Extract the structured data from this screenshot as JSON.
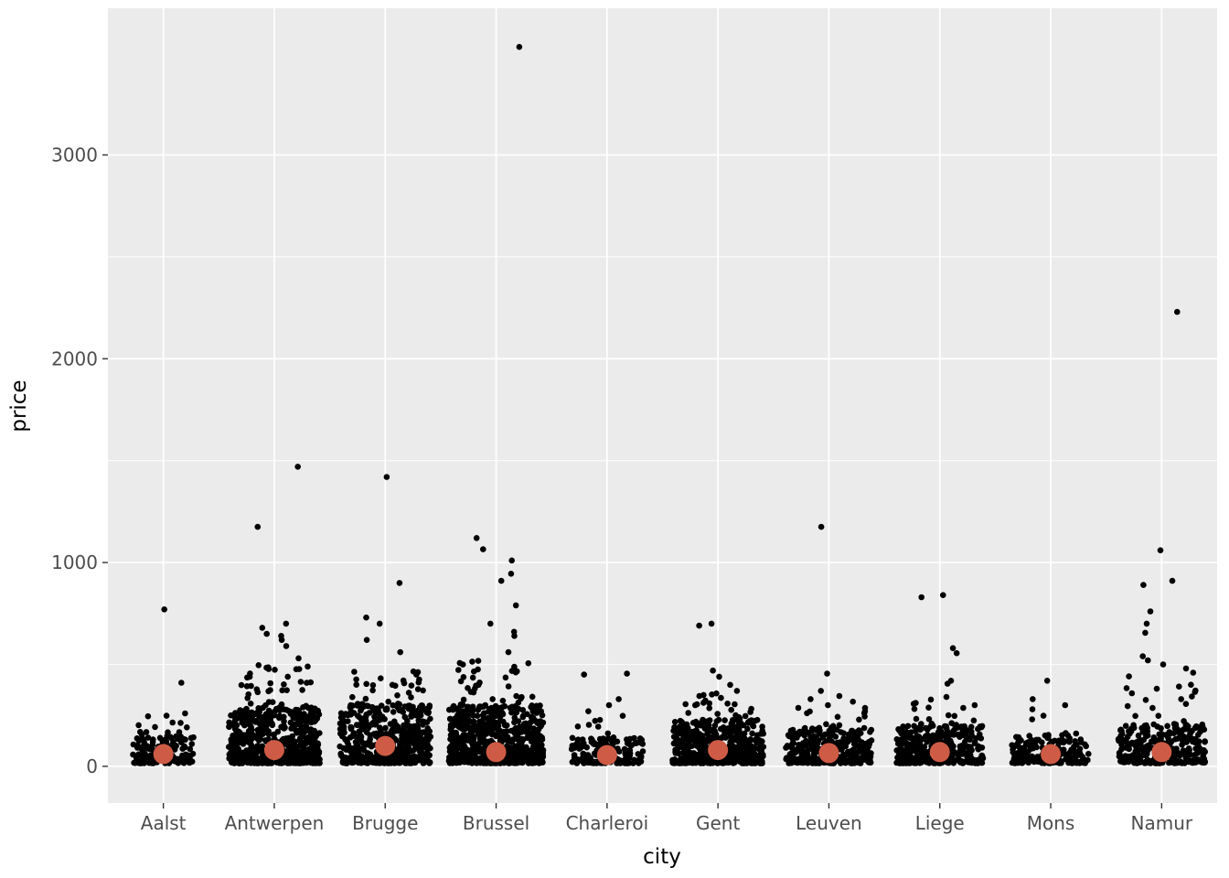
{
  "figure": {
    "background": "#FFFFFF"
  },
  "chart_data": {
    "type": "scatter",
    "subtype": "jittered-strip-plot-with-mean-points",
    "title": "",
    "xlabel": "city",
    "ylabel": "price",
    "categories": [
      "Aalst",
      "Antwerpen",
      "Brugge",
      "Brussel",
      "Charleroi",
      "Gent",
      "Leuven",
      "Liege",
      "Mons",
      "Namur"
    ],
    "ylim": [
      -180,
      3720
    ],
    "yticks": [
      0,
      1000,
      2000,
      3000
    ],
    "yticks_minor": [
      500,
      1500,
      2500
    ],
    "grid": true,
    "legend": false,
    "panel_bg": "#EBEBEB",
    "grid_color": "#FFFFFF",
    "point_color": "#000000",
    "mean_color": "#CE5B45",
    "tick_color": "#333333",
    "tick_label_color": "#4D4D4D",
    "axis_title_color": "#000000",
    "y_min": 15,
    "series": [
      {
        "city": "Aalst",
        "mean": 60,
        "n": 140,
        "bulk_max": 170,
        "mid_n": 6,
        "mid_max": 250,
        "spread": 0.55,
        "outliers": [
          770,
          410,
          260,
          215
        ]
      },
      {
        "city": "Antwerpen",
        "mean": 80,
        "n": 600,
        "bulk_max": 290,
        "mid_n": 35,
        "mid_max": 500,
        "spread": 0.82,
        "outliers": [
          1470,
          1175,
          700,
          680,
          650,
          640,
          620,
          590,
          530
        ]
      },
      {
        "city": "Brugge",
        "mean": 100,
        "n": 550,
        "bulk_max": 300,
        "mid_n": 30,
        "mid_max": 470,
        "spread": 0.82,
        "outliers": [
          1420,
          900,
          730,
          700,
          620,
          560
        ]
      },
      {
        "city": "Brussel",
        "mean": 70,
        "n": 700,
        "bulk_max": 300,
        "mid_n": 35,
        "mid_max": 520,
        "spread": 0.85,
        "outliers": [
          3530,
          1120,
          1065,
          1010,
          945,
          910,
          790,
          700,
          660,
          640,
          560
        ]
      },
      {
        "city": "Charleroi",
        "mean": 55,
        "n": 160,
        "bulk_max": 140,
        "mid_n": 8,
        "mid_max": 250,
        "spread": 0.65,
        "outliers": [
          455,
          450,
          330,
          300,
          270
        ]
      },
      {
        "city": "Gent",
        "mean": 80,
        "n": 500,
        "bulk_max": 230,
        "mid_n": 22,
        "mid_max": 360,
        "spread": 0.82,
        "outliers": [
          700,
          690,
          470,
          440,
          400,
          370,
          350
        ]
      },
      {
        "city": "Leuven",
        "mean": 65,
        "n": 320,
        "bulk_max": 190,
        "mid_n": 14,
        "mid_max": 320,
        "spread": 0.78,
        "outliers": [
          1175,
          455,
          370,
          345,
          330
        ]
      },
      {
        "city": "Liege",
        "mean": 70,
        "n": 340,
        "bulk_max": 200,
        "mid_n": 16,
        "mid_max": 330,
        "spread": 0.78,
        "outliers": [
          840,
          830,
          580,
          555,
          420,
          405,
          340
        ]
      },
      {
        "city": "Mons",
        "mean": 60,
        "n": 180,
        "bulk_max": 150,
        "mid_n": 8,
        "mid_max": 260,
        "spread": 0.7,
        "outliers": [
          420,
          330,
          300,
          280
        ]
      },
      {
        "city": "Namur",
        "mean": 70,
        "n": 300,
        "bulk_max": 210,
        "mid_n": 18,
        "mid_max": 470,
        "spread": 0.78,
        "outliers": [
          2230,
          1060,
          910,
          890,
          760,
          700,
          655,
          540,
          520,
          500,
          480
        ]
      }
    ]
  }
}
